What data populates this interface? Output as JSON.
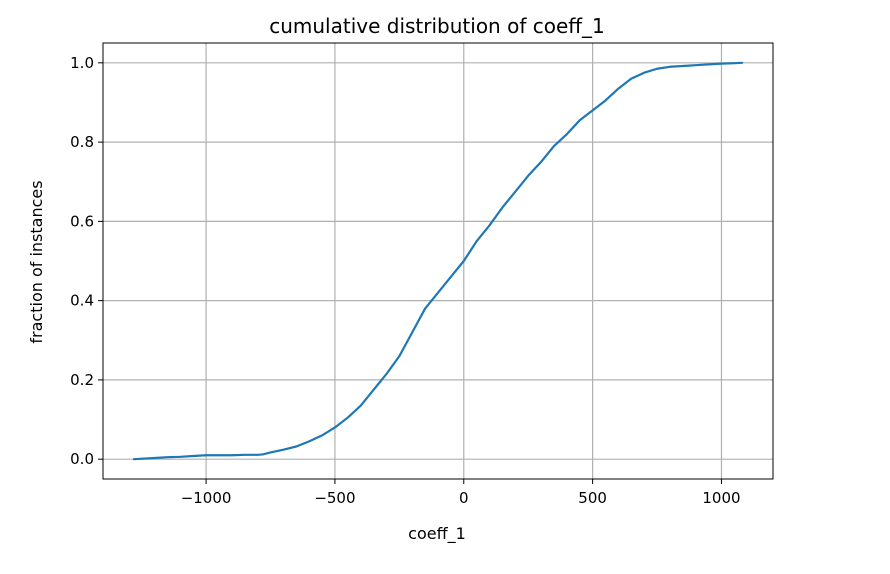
{
  "chart_data": {
    "type": "line",
    "title": "cumulative distribution of coeff_1",
    "xlabel": "coeff_1",
    "ylabel": "fraction of instances",
    "xlim": [
      -1400,
      1200
    ],
    "ylim": [
      -0.05,
      1.05
    ],
    "grid": true,
    "xticks": [
      -1000,
      -500,
      0,
      500,
      1000
    ],
    "xtick_labels": [
      "−1000",
      "−500",
      "0",
      "500",
      "1000"
    ],
    "yticks": [
      0.0,
      0.2,
      0.4,
      0.6,
      0.8,
      1.0
    ],
    "ytick_labels": [
      "0.0",
      "0.2",
      "0.4",
      "0.6",
      "0.8",
      "1.0"
    ],
    "colors": {
      "line": "#1f77b4",
      "grid": "#b0b0b0",
      "axes": "#000000"
    },
    "series": [
      {
        "x": [
          -1280,
          -1200,
          -1150,
          -1100,
          -1050,
          -1000,
          -950,
          -900,
          -850,
          -800,
          -780,
          -750,
          -700,
          -650,
          -600,
          -550,
          -500,
          -450,
          -400,
          -350,
          -300,
          -250,
          -200,
          -150,
          -100,
          -50,
          0,
          50,
          100,
          150,
          200,
          250,
          300,
          350,
          400,
          450,
          500,
          550,
          600,
          650,
          700,
          750,
          800,
          850,
          900,
          950,
          1000,
          1050,
          1080
        ],
        "y": [
          0.0,
          0.003,
          0.005,
          0.006,
          0.008,
          0.01,
          0.01,
          0.01,
          0.011,
          0.011,
          0.012,
          0.017,
          0.024,
          0.032,
          0.045,
          0.06,
          0.08,
          0.105,
          0.135,
          0.175,
          0.215,
          0.26,
          0.32,
          0.38,
          0.42,
          0.46,
          0.5,
          0.55,
          0.59,
          0.635,
          0.675,
          0.715,
          0.75,
          0.79,
          0.82,
          0.855,
          0.88,
          0.905,
          0.935,
          0.96,
          0.975,
          0.985,
          0.99,
          0.992,
          0.994,
          0.996,
          0.998,
          0.999,
          1.0
        ]
      }
    ]
  }
}
